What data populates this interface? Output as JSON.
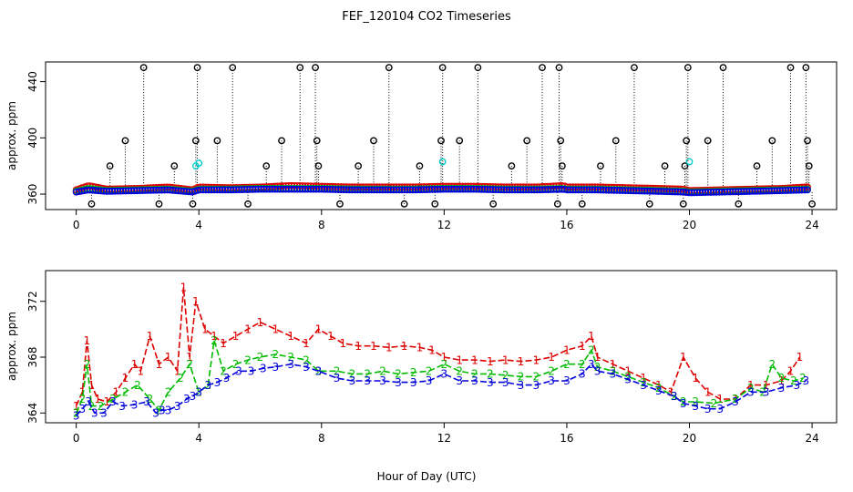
{
  "chart_data": [
    {
      "type": "scatter",
      "title": "FEF_120104  CO2 Timeseries",
      "xlabel": "",
      "ylabel": "approx. ppm",
      "xlim": [
        -1,
        24.8
      ],
      "ylim": [
        349,
        454
      ],
      "xticks": [
        0,
        4,
        8,
        12,
        16,
        20,
        24
      ],
      "xtick_labels": [
        "0",
        "4",
        "8",
        "12",
        "16",
        "20",
        "24"
      ],
      "yticks": [
        360,
        400,
        440
      ],
      "ytick_labels": [
        "360",
        "400",
        "440"
      ],
      "colors": {
        "series1": "#dd0000",
        "series2": "#00bb00",
        "series3": "#0000dd",
        "spikes": "#000000",
        "cyan": "#00cccc"
      },
      "baseline": {
        "x": [
          0,
          0.4,
          1,
          2,
          3,
          3.8,
          4,
          5,
          6,
          7,
          8,
          9,
          10,
          11,
          12,
          13,
          14,
          15,
          15.9,
          16,
          17,
          18,
          19,
          19.8,
          20,
          21,
          22,
          23,
          23.8
        ],
        "series1": [
          363,
          366,
          363.5,
          364,
          365,
          363,
          365,
          364.5,
          365,
          366,
          365.5,
          365,
          365,
          365,
          365.5,
          365.5,
          365,
          365,
          366,
          365,
          365,
          364.5,
          364,
          363.5,
          362.5,
          363,
          363.5,
          364,
          365
        ],
        "series2": [
          362,
          364,
          362.5,
          363,
          363.5,
          362,
          363.5,
          363.5,
          364,
          364,
          364,
          363.5,
          363.5,
          363.5,
          364,
          364,
          363.5,
          363.5,
          364,
          363.5,
          363.5,
          363,
          362.5,
          362,
          361.5,
          362,
          362.5,
          363,
          363.5
        ],
        "series3": [
          361.5,
          363,
          362,
          362.5,
          363,
          361.5,
          363,
          363,
          363.5,
          363.5,
          363.5,
          363,
          363,
          363,
          363.5,
          363.5,
          363,
          363,
          363.5,
          363,
          363,
          362.5,
          362,
          361.5,
          361,
          361.5,
          362,
          362.5,
          363
        ]
      },
      "spikes": [
        {
          "x": 0.5,
          "y": 353
        },
        {
          "x": 1.1,
          "y": 380
        },
        {
          "x": 1.6,
          "y": 398
        },
        {
          "x": 2.2,
          "y": 450
        },
        {
          "x": 2.7,
          "y": 353
        },
        {
          "x": 3.2,
          "y": 380
        },
        {
          "x": 3.8,
          "y": 353
        },
        {
          "x": 3.9,
          "y": 398
        },
        {
          "x": 3.95,
          "y": 450
        },
        {
          "x": 4.6,
          "y": 398
        },
        {
          "x": 5.1,
          "y": 450
        },
        {
          "x": 5.6,
          "y": 353
        },
        {
          "x": 6.2,
          "y": 380
        },
        {
          "x": 6.7,
          "y": 398
        },
        {
          "x": 7.3,
          "y": 450
        },
        {
          "x": 7.8,
          "y": 450
        },
        {
          "x": 7.85,
          "y": 398
        },
        {
          "x": 7.9,
          "y": 380
        },
        {
          "x": 8.6,
          "y": 353
        },
        {
          "x": 9.2,
          "y": 380
        },
        {
          "x": 9.7,
          "y": 398
        },
        {
          "x": 10.2,
          "y": 450
        },
        {
          "x": 10.7,
          "y": 353
        },
        {
          "x": 11.2,
          "y": 380
        },
        {
          "x": 11.7,
          "y": 353
        },
        {
          "x": 11.9,
          "y": 398
        },
        {
          "x": 11.95,
          "y": 450
        },
        {
          "x": 12.5,
          "y": 398
        },
        {
          "x": 13.1,
          "y": 450
        },
        {
          "x": 13.6,
          "y": 353
        },
        {
          "x": 14.2,
          "y": 380
        },
        {
          "x": 14.7,
          "y": 398
        },
        {
          "x": 15.2,
          "y": 450
        },
        {
          "x": 15.7,
          "y": 353
        },
        {
          "x": 15.75,
          "y": 450
        },
        {
          "x": 15.8,
          "y": 398
        },
        {
          "x": 15.85,
          "y": 380
        },
        {
          "x": 16.5,
          "y": 353
        },
        {
          "x": 17.1,
          "y": 380
        },
        {
          "x": 17.6,
          "y": 398
        },
        {
          "x": 18.2,
          "y": 450
        },
        {
          "x": 18.7,
          "y": 353
        },
        {
          "x": 19.2,
          "y": 380
        },
        {
          "x": 19.8,
          "y": 353
        },
        {
          "x": 19.85,
          "y": 380
        },
        {
          "x": 19.9,
          "y": 398
        },
        {
          "x": 19.95,
          "y": 450
        },
        {
          "x": 20.6,
          "y": 398
        },
        {
          "x": 21.1,
          "y": 450
        },
        {
          "x": 21.6,
          "y": 353
        },
        {
          "x": 22.2,
          "y": 380
        },
        {
          "x": 22.7,
          "y": 398
        },
        {
          "x": 23.3,
          "y": 450
        },
        {
          "x": 23.8,
          "y": 450
        },
        {
          "x": 23.85,
          "y": 398
        },
        {
          "x": 23.9,
          "y": 380
        },
        {
          "x": 24.0,
          "y": 353
        }
      ],
      "cyan_points": [
        {
          "x": 3.9,
          "y": 380
        },
        {
          "x": 4.0,
          "y": 382
        },
        {
          "x": 11.95,
          "y": 383
        },
        {
          "x": 20.0,
          "y": 383
        }
      ]
    },
    {
      "type": "line",
      "title": "",
      "xlabel": "Hour of Day (UTC)",
      "ylabel": "approx. ppm",
      "xlim": [
        -1,
        24.8
      ],
      "ylim": [
        363.3,
        374.2
      ],
      "xticks": [
        0,
        4,
        8,
        12,
        16,
        20,
        24
      ],
      "xtick_labels": [
        "0",
        "4",
        "8",
        "12",
        "16",
        "20",
        "24"
      ],
      "yticks": [
        364,
        368,
        372
      ],
      "ytick_labels": [
        "364",
        "368",
        "372"
      ],
      "markers": [
        "1",
        "2",
        "3"
      ],
      "series": [
        {
          "name": "1",
          "color": "#dd0000",
          "x": [
            0,
            0.2,
            0.35,
            0.5,
            0.7,
            1.0,
            1.3,
            1.6,
            1.9,
            2.1,
            2.4,
            2.7,
            3.0,
            3.3,
            3.5,
            3.7,
            3.9,
            4.2,
            4.5,
            4.8,
            5.2,
            5.6,
            6.0,
            6.5,
            7.0,
            7.5,
            7.9,
            8.3,
            8.7,
            9.2,
            9.7,
            10.2,
            10.7,
            11.2,
            11.6,
            12.0,
            12.5,
            13.0,
            13.5,
            14.0,
            14.5,
            15.0,
            15.5,
            16.0,
            16.5,
            16.8,
            17.0,
            17.5,
            18.0,
            18.5,
            19.0,
            19.4,
            19.8,
            20.2,
            20.6,
            21.0,
            21.5,
            22.0,
            22.5,
            23.0,
            23.3,
            23.6
          ],
          "values": [
            364.5,
            365.5,
            369.2,
            366,
            365,
            364.8,
            365.5,
            366.5,
            367.5,
            367,
            369.5,
            367.5,
            368,
            367,
            373,
            368,
            372,
            370,
            369.5,
            369,
            369.5,
            370,
            370.5,
            370,
            369.5,
            369,
            370,
            369.5,
            369,
            368.8,
            368.8,
            368.7,
            368.8,
            368.7,
            368.5,
            368,
            367.8,
            367.8,
            367.7,
            367.8,
            367.7,
            367.8,
            368,
            368.5,
            368.8,
            369.5,
            368,
            367.5,
            367,
            366.5,
            366,
            365.5,
            368,
            366.5,
            365.5,
            365,
            365,
            366,
            366,
            366.3,
            367,
            368
          ]
        },
        {
          "name": "2",
          "color": "#00bb00",
          "x": [
            0,
            0.2,
            0.35,
            0.5,
            0.8,
            1.2,
            1.6,
            2.0,
            2.4,
            2.7,
            3.0,
            3.4,
            3.7,
            4.0,
            4.3,
            4.5,
            4.8,
            5.2,
            5.6,
            6.0,
            6.5,
            7.0,
            7.5,
            7.9,
            8.5,
            9.0,
            9.5,
            10.0,
            10.5,
            11.0,
            11.5,
            12.0,
            12.5,
            13.0,
            13.5,
            14.0,
            14.5,
            15.0,
            15.5,
            16.0,
            16.5,
            16.8,
            17.0,
            17.5,
            18.0,
            18.5,
            19.0,
            19.5,
            19.8,
            20.2,
            20.8,
            21.5,
            22.0,
            22.4,
            22.7,
            23.0,
            23.4,
            23.7
          ],
          "values": [
            364,
            365,
            367.5,
            364.5,
            364.5,
            365,
            365.5,
            366,
            365,
            364.2,
            365.5,
            366.5,
            367.5,
            365.5,
            366,
            369.2,
            367,
            367.5,
            367.8,
            368,
            368.2,
            368,
            367.8,
            367,
            367,
            366.8,
            366.8,
            367,
            366.8,
            366.9,
            367,
            367.5,
            367,
            366.8,
            366.8,
            366.7,
            366.6,
            366.6,
            367,
            367.5,
            367.5,
            368.5,
            367.3,
            367,
            366.6,
            366.2,
            365.8,
            365.2,
            364.8,
            364.8,
            364.7,
            365,
            365.8,
            365.5,
            367.5,
            366.5,
            366.3,
            366.5
          ]
        },
        {
          "name": "3",
          "color": "#0000dd",
          "x": [
            0,
            0.2,
            0.4,
            0.6,
            0.9,
            1.2,
            1.5,
            1.9,
            2.3,
            2.6,
            2.8,
            3.0,
            3.3,
            3.6,
            3.8,
            4.0,
            4.3,
            4.6,
            4.9,
            5.3,
            5.7,
            6.1,
            6.5,
            7.0,
            7.5,
            7.9,
            8.5,
            9.0,
            9.5,
            10.0,
            10.5,
            11.0,
            11.5,
            12.0,
            12.5,
            13.0,
            13.5,
            14.0,
            14.5,
            15.0,
            15.5,
            16.0,
            16.5,
            16.8,
            17.0,
            17.5,
            18.0,
            18.5,
            19.0,
            19.5,
            19.8,
            20.2,
            20.6,
            21.0,
            21.5,
            22.0,
            22.5,
            23.0,
            23.5,
            23.8
          ],
          "values": [
            363.8,
            364.3,
            364.8,
            364,
            364,
            364.8,
            364.5,
            364.6,
            364.8,
            364,
            364.2,
            364.2,
            364.5,
            365,
            365.2,
            365.5,
            366,
            366.2,
            366.5,
            367,
            367,
            367.2,
            367.3,
            367.5,
            367.3,
            367,
            366.5,
            366.3,
            366.3,
            366.3,
            366.2,
            366.2,
            366.3,
            366.8,
            366.3,
            366.3,
            366.2,
            366.2,
            366,
            366,
            366.3,
            366.3,
            366.8,
            367.5,
            367,
            366.8,
            366.4,
            366,
            365.6,
            365.2,
            364.7,
            364.5,
            364.3,
            364.3,
            364.8,
            365.5,
            365.5,
            365.8,
            366,
            366.3
          ]
        }
      ]
    }
  ]
}
